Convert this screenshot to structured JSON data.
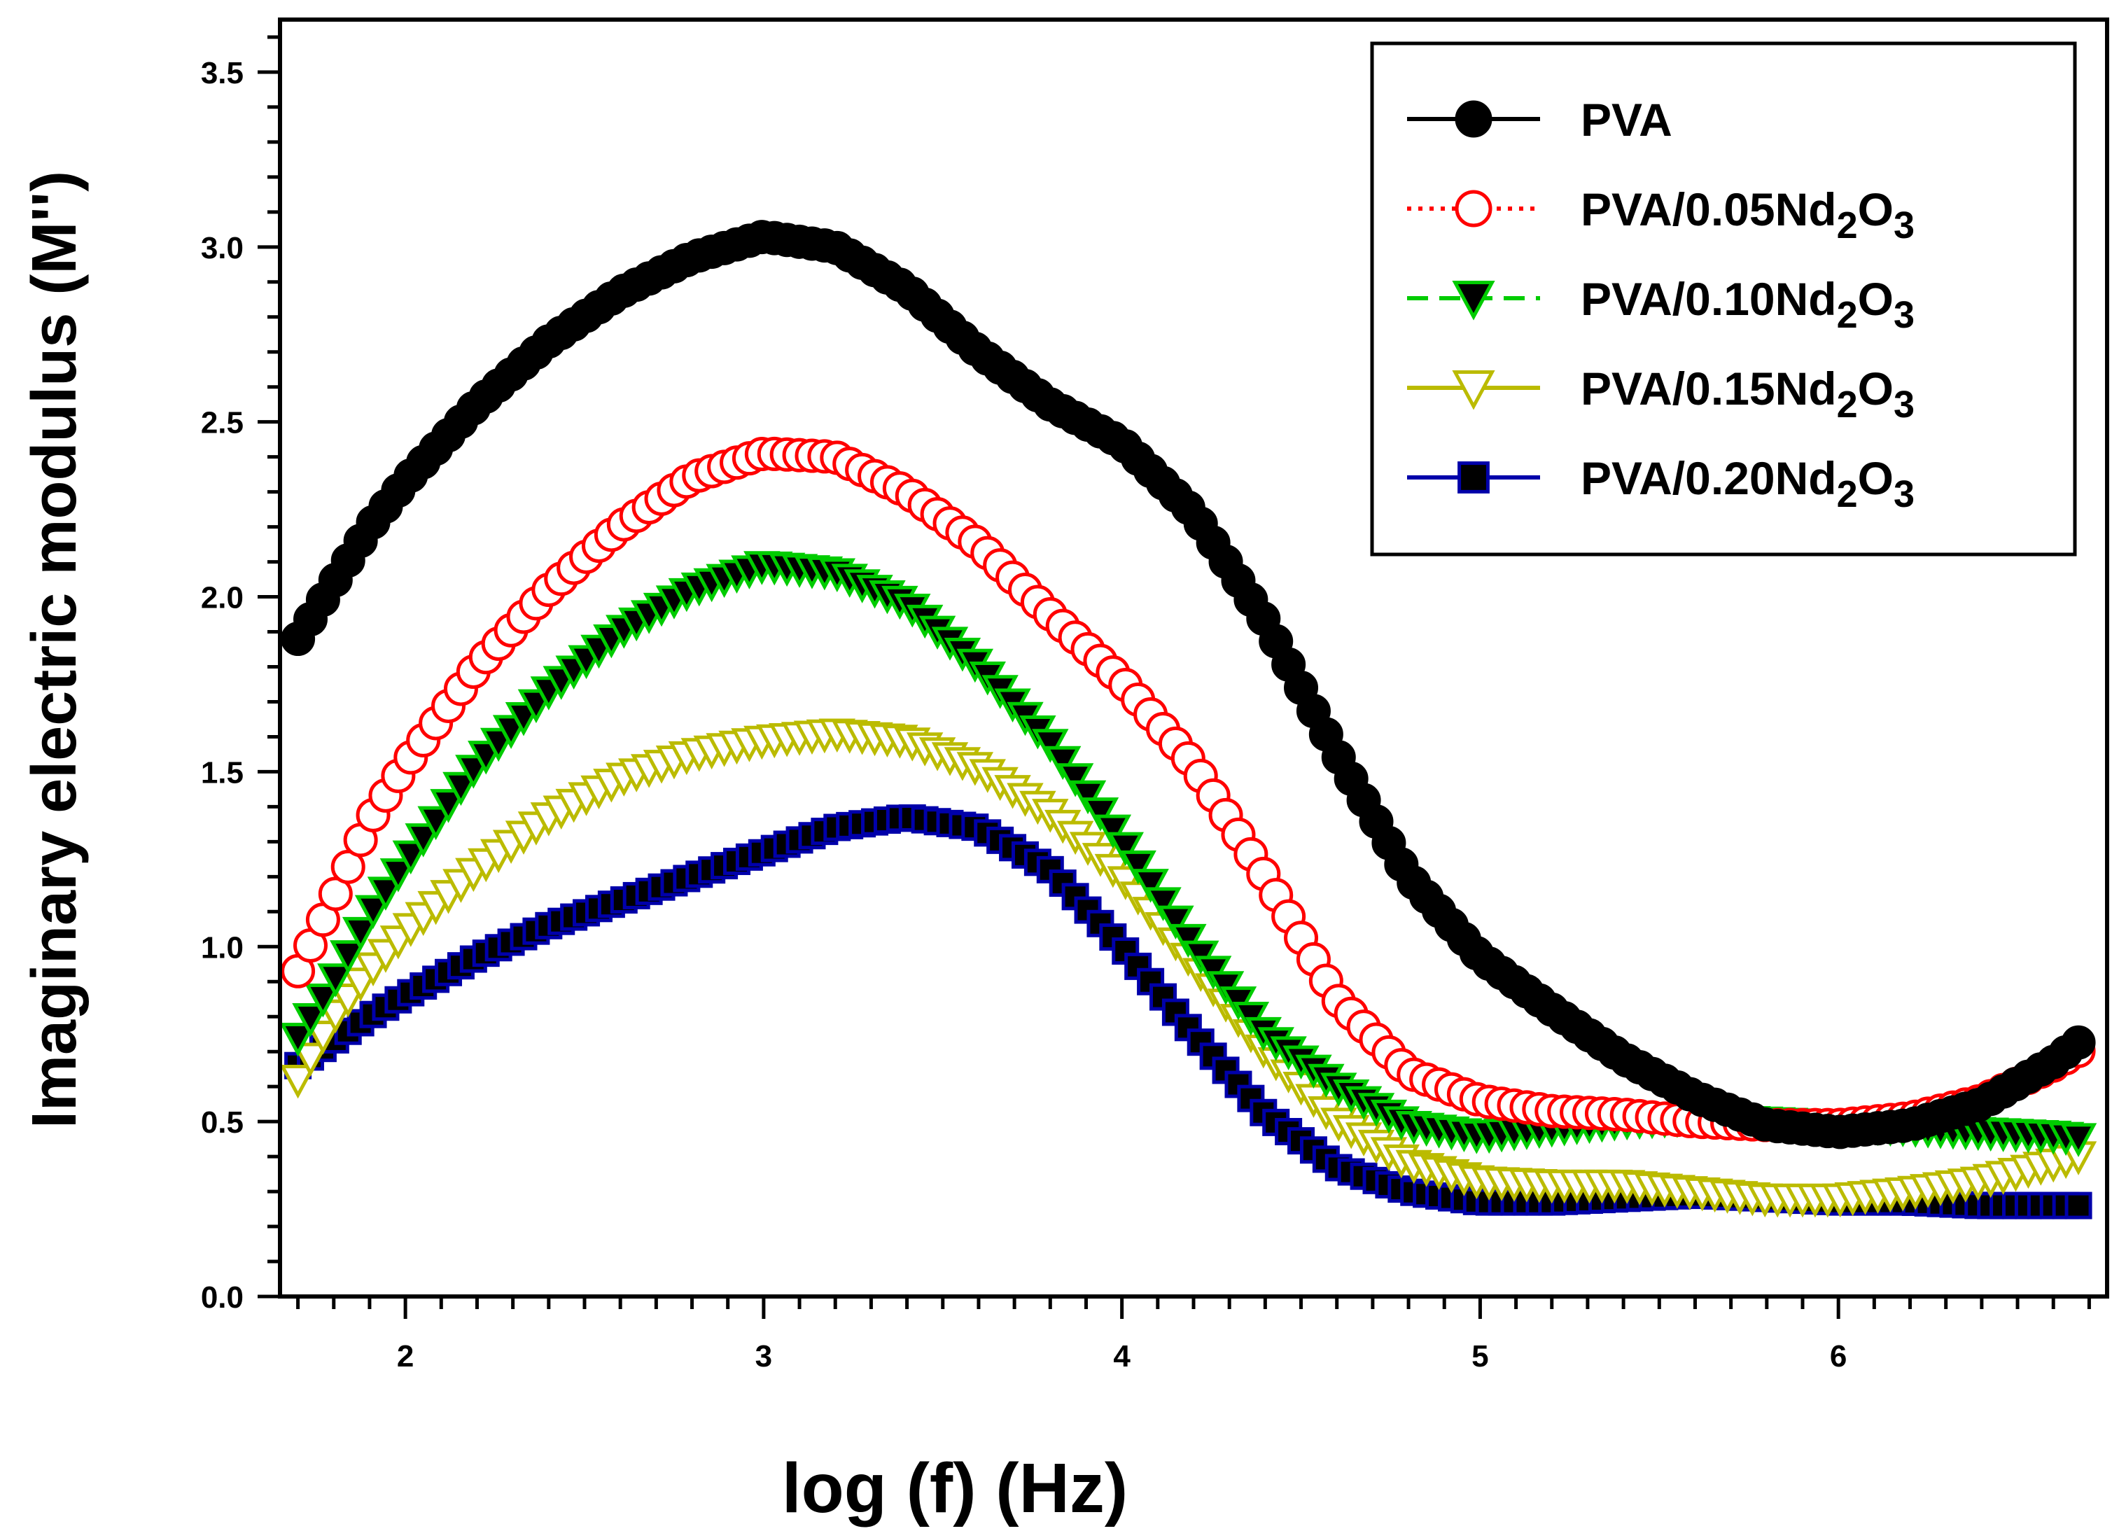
{
  "chart_data": {
    "type": "line",
    "title": "",
    "xlabel": "log (f) (Hz)",
    "ylabel": "Imaginary electric modulus (M'')",
    "xlim": [
      1.65,
      6.75
    ],
    "ylim": [
      0.0,
      3.65
    ],
    "x_ticks": [
      2,
      3,
      4,
      5,
      6
    ],
    "x_tick_labels": [
      "2",
      "3",
      "4",
      "5",
      "6"
    ],
    "y_ticks": [
      0.0,
      0.5,
      1.0,
      1.5,
      2.0,
      2.5,
      3.0,
      3.5
    ],
    "y_tick_labels": [
      "0.0",
      "0.5",
      "1.0",
      "1.5",
      "2.0",
      "2.5",
      "3.0",
      "3.5"
    ],
    "legend_position": "top-right",
    "series": [
      {
        "name": "PVA",
        "label_main": "PVA",
        "label_sub": "",
        "label_tail": "",
        "label_sub2": "",
        "color": "#000000",
        "fill": "#000000",
        "marker": "circle",
        "line_style": "solid",
        "x": [
          1.7,
          1.9,
          2.0,
          2.2,
          2.4,
          2.6,
          2.8,
          3.0,
          3.2,
          3.4,
          3.6,
          3.8,
          4.0,
          4.2,
          4.4,
          4.6,
          4.8,
          5.0,
          5.2,
          5.4,
          5.6,
          5.8,
          6.0,
          6.2,
          6.4,
          6.6,
          6.7
        ],
        "y": [
          1.88,
          2.2,
          2.33,
          2.55,
          2.73,
          2.87,
          2.97,
          3.03,
          3.0,
          2.88,
          2.7,
          2.55,
          2.44,
          2.24,
          1.93,
          1.55,
          1.2,
          0.97,
          0.82,
          0.68,
          0.57,
          0.49,
          0.47,
          0.49,
          0.55,
          0.67,
          0.75
        ]
      },
      {
        "name": "PVA/0.05Nd2O3",
        "label_main": "PVA/0.05Nd",
        "label_sub": "2",
        "label_tail": "O",
        "label_sub2": "3",
        "color": "#ff0000",
        "fill": "#ffffff",
        "marker": "circle-open",
        "line_style": "dotted",
        "x": [
          1.7,
          1.8,
          1.9,
          2.0,
          2.2,
          2.4,
          2.6,
          2.8,
          3.0,
          3.2,
          3.4,
          3.6,
          3.8,
          4.0,
          4.2,
          4.4,
          4.6,
          4.8,
          5.0,
          5.2,
          5.4,
          5.6,
          5.8,
          6.0,
          6.2,
          6.4,
          6.6,
          6.7
        ],
        "y": [
          0.93,
          1.14,
          1.36,
          1.52,
          1.8,
          2.02,
          2.2,
          2.34,
          2.41,
          2.4,
          2.3,
          2.15,
          1.95,
          1.76,
          1.52,
          1.2,
          0.85,
          0.64,
          0.56,
          0.53,
          0.52,
          0.5,
          0.49,
          0.49,
          0.51,
          0.56,
          0.66,
          0.72
        ]
      },
      {
        "name": "PVA/0.10Nd2O3",
        "label_main": "PVA/0.10Nd",
        "label_sub": "2",
        "label_tail": "O",
        "label_sub2": "3",
        "color": "#00cc00",
        "fill": "#000000",
        "marker": "triangle-down",
        "line_style": "dashed",
        "x": [
          1.7,
          1.8,
          1.9,
          2.0,
          2.2,
          2.4,
          2.6,
          2.8,
          3.0,
          3.2,
          3.4,
          3.6,
          3.8,
          4.0,
          4.2,
          4.4,
          4.6,
          4.8,
          5.0,
          5.2,
          5.4,
          5.6,
          5.8,
          6.0,
          6.2,
          6.4,
          6.6,
          6.7
        ],
        "y": [
          0.74,
          0.9,
          1.09,
          1.24,
          1.52,
          1.73,
          1.9,
          2.02,
          2.09,
          2.07,
          1.98,
          1.8,
          1.58,
          1.3,
          1.0,
          0.75,
          0.6,
          0.49,
          0.46,
          0.48,
          0.5,
          0.51,
          0.5,
          0.49,
          0.48,
          0.47,
          0.46,
          0.45
        ]
      },
      {
        "name": "PVA/0.15Nd2O3",
        "label_main": "PVA/0.15Nd",
        "label_sub": "2",
        "label_tail": "O",
        "label_sub2": "3",
        "color": "#bbbb00",
        "fill": "#ffffff",
        "marker": "triangle-down-open",
        "line_style": "solid",
        "x": [
          1.7,
          1.8,
          1.9,
          2.0,
          2.2,
          2.4,
          2.6,
          2.8,
          3.0,
          3.2,
          3.4,
          3.6,
          3.8,
          4.0,
          4.2,
          4.4,
          4.6,
          4.8,
          5.0,
          5.2,
          5.4,
          5.6,
          5.8,
          6.0,
          6.2,
          6.4,
          6.6,
          6.7
        ],
        "y": [
          0.62,
          0.8,
          0.93,
          1.04,
          1.22,
          1.37,
          1.48,
          1.55,
          1.59,
          1.61,
          1.59,
          1.51,
          1.38,
          1.2,
          0.95,
          0.7,
          0.5,
          0.38,
          0.33,
          0.32,
          0.32,
          0.3,
          0.28,
          0.28,
          0.3,
          0.33,
          0.38,
          0.41
        ]
      },
      {
        "name": "PVA/0.20Nd2O3",
        "label_main": "PVA/0.20Nd",
        "label_sub": "2",
        "label_tail": "O",
        "label_sub2": "3",
        "color": "#0000aa",
        "fill": "#000000",
        "marker": "square",
        "line_style": "solid",
        "x": [
          1.7,
          1.8,
          1.9,
          2.0,
          2.2,
          2.4,
          2.6,
          2.8,
          3.0,
          3.2,
          3.4,
          3.6,
          3.8,
          4.0,
          4.2,
          4.4,
          4.6,
          4.8,
          5.0,
          5.2,
          5.4,
          5.6,
          5.8,
          6.0,
          6.2,
          6.4,
          6.6,
          6.7
        ],
        "y": [
          0.66,
          0.73,
          0.8,
          0.86,
          0.97,
          1.06,
          1.13,
          1.2,
          1.27,
          1.34,
          1.37,
          1.34,
          1.22,
          1.0,
          0.75,
          0.52,
          0.37,
          0.3,
          0.27,
          0.27,
          0.28,
          0.29,
          0.28,
          0.27,
          0.27,
          0.26,
          0.26,
          0.26
        ]
      }
    ]
  }
}
